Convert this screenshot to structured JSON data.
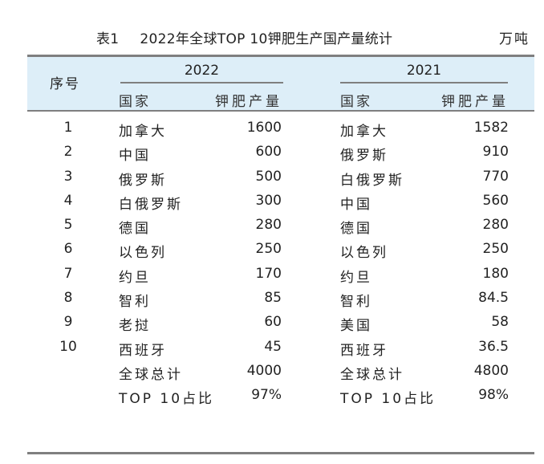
{
  "caption": {
    "table_no": "表1",
    "title": "2022年全球TOP 10钾肥生产国产量统计",
    "unit": "万吨"
  },
  "header": {
    "seq": "序号",
    "group_a": "2022",
    "group_b": "2021",
    "country": "国家",
    "output": "钾肥产量"
  },
  "rows": [
    {
      "seq": "1",
      "c2022": "加拿大",
      "v2022": "1600",
      "c2021": "加拿大",
      "v2021": "1582"
    },
    {
      "seq": "2",
      "c2022": "中国",
      "v2022": "600",
      "c2021": "俄罗斯",
      "v2021": "910"
    },
    {
      "seq": "3",
      "c2022": "俄罗斯",
      "v2022": "500",
      "c2021": "白俄罗斯",
      "v2021": "770"
    },
    {
      "seq": "4",
      "c2022": "白俄罗斯",
      "v2022": "300",
      "c2021": "中国",
      "v2021": "560"
    },
    {
      "seq": "5",
      "c2022": "德国",
      "v2022": "280",
      "c2021": "德国",
      "v2021": "280"
    },
    {
      "seq": "6",
      "c2022": "以色列",
      "v2022": "250",
      "c2021": "以色列",
      "v2021": "250"
    },
    {
      "seq": "7",
      "c2022": "约旦",
      "v2022": "170",
      "c2021": "约旦",
      "v2021": "180"
    },
    {
      "seq": "8",
      "c2022": "智利",
      "v2022": "85",
      "c2021": "智利",
      "v2021": "84.5"
    },
    {
      "seq": "9",
      "c2022": "老挝",
      "v2022": "60",
      "c2021": "美国",
      "v2021": "58"
    },
    {
      "seq": "10",
      "c2022": "西班牙",
      "v2022": "45",
      "c2021": "西班牙",
      "v2021": "36.5"
    },
    {
      "seq": "",
      "c2022": "全球总计",
      "v2022": "4000",
      "c2021": "全球总计",
      "v2021": "4800"
    },
    {
      "seq": "",
      "c2022": "TOP 10占比",
      "v2022": "97%",
      "c2021": "TOP 10占比",
      "v2021": "98%"
    }
  ]
}
